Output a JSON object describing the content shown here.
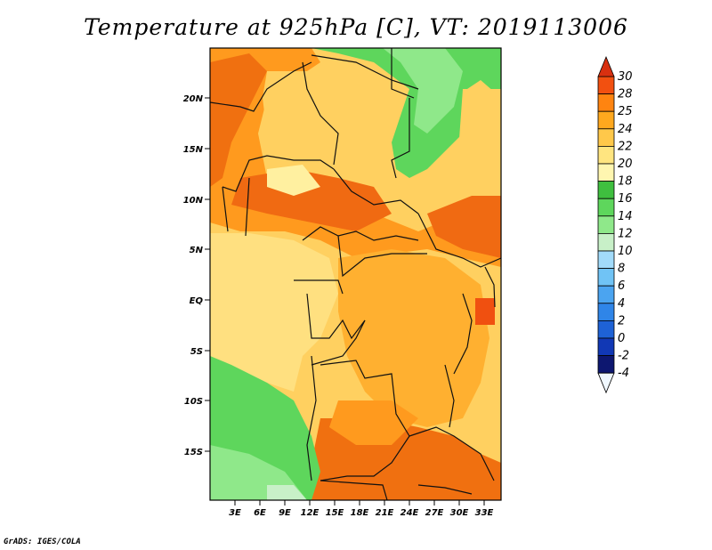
{
  "title": "Temperature at 925hPa [C], VT: 2019113006",
  "credit": "GrADS: IGES/COLA",
  "map": {
    "lat_labels": [
      "20N",
      "15N",
      "10N",
      "5N",
      "EQ",
      "5S",
      "10S",
      "15S"
    ],
    "lon_labels": [
      "3E",
      "6E",
      "9E",
      "12E",
      "15E",
      "18E",
      "21E",
      "24E",
      "27E",
      "30E",
      "33E"
    ]
  },
  "colorbar": {
    "labels": [
      "30",
      "28",
      "25",
      "24",
      "22",
      "20",
      "18",
      "16",
      "14",
      "12",
      "10",
      "8",
      "6",
      "4",
      "2",
      "0",
      "-2",
      "-4"
    ],
    "colors": [
      "#f0f8ff",
      "#0d1770",
      "#1138b5",
      "#1e62d6",
      "#2f85e8",
      "#4ba4f0",
      "#70c3f5",
      "#a2dbfa",
      "#c8f0c8",
      "#8fe88a",
      "#5ed65c",
      "#3fbf3f",
      "#fff6b0",
      "#ffe580",
      "#ffc84a",
      "#ffa81e",
      "#ff8410",
      "#f25010",
      "#d83010"
    ]
  },
  "colors": {
    "land_hot": "#f07010",
    "land_warm": "#ffb030",
    "land_mild": "#ffe080",
    "land_cool": "#5ed65c",
    "border": "#111111"
  }
}
